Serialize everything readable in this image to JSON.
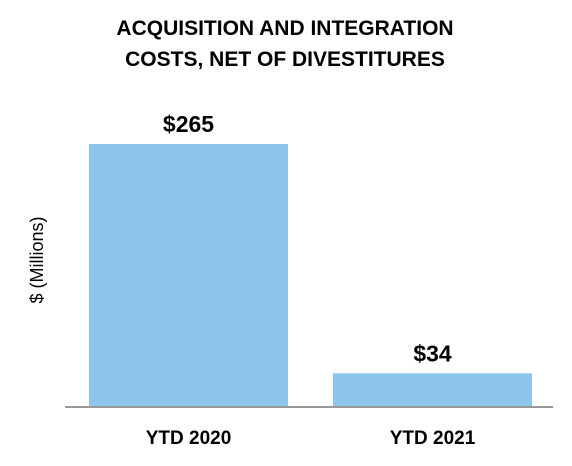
{
  "chart_data": {
    "type": "bar",
    "title_lines": [
      "ACQUISITION AND INTEGRATION",
      "COSTS, NET OF DIVESTITURES"
    ],
    "ylabel": "$ (Millions)",
    "categories": [
      "YTD 2020",
      "YTD 2021"
    ],
    "values": [
      265,
      34
    ],
    "data_labels": [
      "$265",
      "$34"
    ],
    "ylim": [
      0,
      300
    ],
    "grid": false,
    "legend": "none",
    "colors": {
      "bar": "#8dc6ea",
      "axis": "#999999",
      "text": "#000000"
    }
  }
}
